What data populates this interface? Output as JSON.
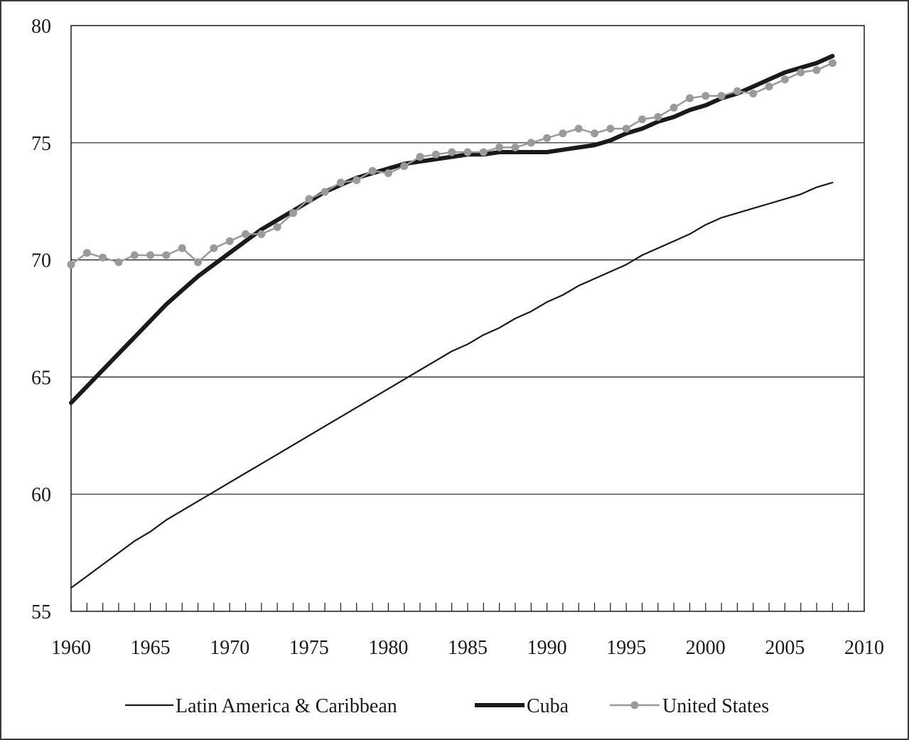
{
  "chart_data": {
    "type": "line",
    "title": "",
    "xlabel": "",
    "ylabel": "",
    "xlim": [
      1960,
      2010
    ],
    "ylim": [
      55,
      80
    ],
    "x_ticks": [
      "1960",
      "1965",
      "1970",
      "1975",
      "1980",
      "1985",
      "1990",
      "1995",
      "2000",
      "2005",
      "2010"
    ],
    "y_ticks": [
      "55",
      "60",
      "65",
      "70",
      "75",
      "80"
    ],
    "grid": "horizontal",
    "legend_position": "bottom",
    "x": [
      1960,
      1961,
      1962,
      1963,
      1964,
      1965,
      1966,
      1967,
      1968,
      1969,
      1970,
      1971,
      1972,
      1973,
      1974,
      1975,
      1976,
      1977,
      1978,
      1979,
      1980,
      1981,
      1982,
      1983,
      1984,
      1985,
      1986,
      1987,
      1988,
      1989,
      1990,
      1991,
      1992,
      1993,
      1994,
      1995,
      1996,
      1997,
      1998,
      1999,
      2000,
      2001,
      2002,
      2003,
      2004,
      2005,
      2006,
      2007,
      2008
    ],
    "series": [
      {
        "name": "Latin America & Caribbean",
        "color": "#1a1a1a",
        "style": "thin-line",
        "values": [
          56.0,
          56.5,
          57.0,
          57.5,
          58.0,
          58.4,
          58.9,
          59.3,
          59.7,
          60.1,
          60.5,
          60.9,
          61.3,
          61.7,
          62.1,
          62.5,
          62.9,
          63.3,
          63.7,
          64.1,
          64.5,
          64.9,
          65.3,
          65.7,
          66.1,
          66.4,
          66.8,
          67.1,
          67.5,
          67.8,
          68.2,
          68.5,
          68.9,
          69.2,
          69.5,
          69.8,
          70.2,
          70.5,
          70.8,
          71.1,
          71.5,
          71.8,
          72.0,
          72.2,
          72.4,
          72.6,
          72.8,
          73.1,
          73.3
        ]
      },
      {
        "name": "Cuba",
        "color": "#1a1a1a",
        "style": "thick-line",
        "values": [
          63.9,
          64.6,
          65.3,
          66.0,
          66.7,
          67.4,
          68.1,
          68.7,
          69.3,
          69.8,
          70.3,
          70.8,
          71.3,
          71.7,
          72.1,
          72.5,
          72.9,
          73.2,
          73.5,
          73.7,
          73.9,
          74.1,
          74.2,
          74.3,
          74.4,
          74.5,
          74.5,
          74.6,
          74.6,
          74.6,
          74.6,
          74.7,
          74.8,
          74.9,
          75.1,
          75.4,
          75.6,
          75.9,
          76.1,
          76.4,
          76.6,
          76.9,
          77.1,
          77.4,
          77.7,
          78.0,
          78.2,
          78.4,
          78.7
        ]
      },
      {
        "name": "United States",
        "color": "#9a9a9a",
        "style": "line-with-markers",
        "values": [
          69.8,
          70.3,
          70.1,
          69.9,
          70.2,
          70.2,
          70.2,
          70.5,
          69.9,
          70.5,
          70.8,
          71.1,
          71.1,
          71.4,
          72.0,
          72.6,
          72.9,
          73.3,
          73.4,
          73.8,
          73.7,
          74.0,
          74.4,
          74.5,
          74.6,
          74.6,
          74.6,
          74.8,
          74.8,
          75.0,
          75.2,
          75.4,
          75.6,
          75.4,
          75.6,
          75.6,
          76.0,
          76.1,
          76.5,
          76.9,
          77.0,
          77.0,
          77.2,
          77.1,
          77.4,
          77.7,
          78.0,
          78.1,
          78.4
        ]
      }
    ]
  }
}
